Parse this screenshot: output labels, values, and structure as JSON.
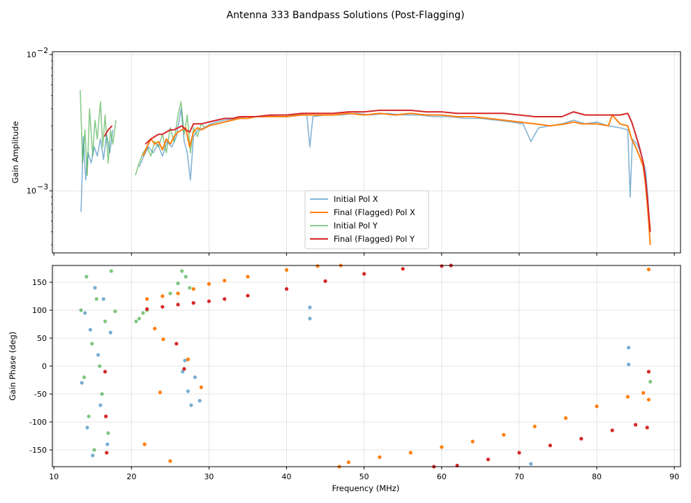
{
  "chart_data": {
    "type": "line",
    "title": "Antenna 333 Bandpass Solutions (Post-Flagging)",
    "xlabel": "Frequency (MHz)",
    "xlim": [
      9.8,
      90.8
    ],
    "x_ticks": [
      10,
      20,
      30,
      40,
      50,
      60,
      70,
      80,
      90
    ],
    "colors": {
      "initial_x": "#1f77b4",
      "final_x": "#ff7f0e",
      "initial_y": "#2ca02c",
      "final_y": "#d62728"
    },
    "legend": {
      "location": "lower-center",
      "entries": [
        "Initial Pol X",
        "Final (Flagged) Pol X",
        "Initial Pol Y",
        "Final (Flagged) Pol Y"
      ]
    },
    "amplitude_panel": {
      "ylabel": "Gain Amplitude",
      "yscale": "log",
      "ylim": [
        0.00035,
        0.0105
      ],
      "y_major_ticks": [
        0.001,
        0.01
      ],
      "y_major_labels": [
        "10",
        "10"
      ],
      "y_major_exponents": [
        "−3",
        "−2"
      ],
      "series": [
        {
          "name": "Initial Pol X",
          "x": [
            13.5,
            13.8,
            14.1,
            14.4,
            14.8,
            15.2,
            15.6,
            16.0,
            16.4,
            16.8,
            17.2,
            17.6,
            21.0,
            21.6,
            22.2,
            22.8,
            23.4,
            24.0,
            24.6,
            25.2,
            25.8,
            26.4,
            26.8,
            27.2,
            27.6,
            28.0,
            28.6,
            29.4,
            30.2,
            31.0,
            32.0,
            33.5,
            35.0,
            37.0,
            39.0,
            41.0,
            42.6,
            43.0,
            43.4,
            45.0,
            47.0,
            49.0,
            51.0,
            53.0,
            55.0,
            57.0,
            59.0,
            61.0,
            63.0,
            65.0,
            67.0,
            69.0,
            70.5,
            71.5,
            72.5,
            74.0,
            75.5,
            77.0,
            78.5,
            80.0,
            81.5,
            83.0,
            84.0,
            84.3,
            84.6,
            85.2,
            85.8,
            86.3,
            86.6,
            86.8
          ],
          "y": [
            0.0007,
            0.0025,
            0.0012,
            0.0019,
            0.0016,
            0.0021,
            0.0018,
            0.0024,
            0.0017,
            0.0026,
            0.0019,
            0.0028,
            0.0015,
            0.0018,
            0.0021,
            0.0019,
            0.0022,
            0.0018,
            0.0023,
            0.0021,
            0.0025,
            0.004,
            0.0023,
            0.0019,
            0.0012,
            0.0025,
            0.0028,
            0.0029,
            0.0031,
            0.0032,
            0.0033,
            0.0034,
            0.0035,
            0.0035,
            0.0036,
            0.0036,
            0.0037,
            0.0021,
            0.0035,
            0.0036,
            0.0036,
            0.0037,
            0.0036,
            0.0037,
            0.0036,
            0.0036,
            0.0035,
            0.0035,
            0.0034,
            0.0034,
            0.0033,
            0.0032,
            0.0031,
            0.0023,
            0.0029,
            0.003,
            0.0031,
            0.0033,
            0.0031,
            0.0032,
            0.003,
            0.0029,
            0.0028,
            0.0009,
            0.0024,
            0.0022,
            0.0018,
            0.0014,
            0.0009,
            0.0005
          ]
        },
        {
          "name": "Final (Flagged) Pol X",
          "x": [
            21.5,
            22.0,
            22.5,
            23.0,
            23.5,
            24.0,
            24.5,
            25.0,
            25.5,
            26.0,
            26.5,
            27.0,
            27.5,
            28.0,
            28.5,
            29.0,
            30.0,
            31.0,
            32.0,
            33.0,
            34.0,
            35.0,
            36.0,
            38.0,
            40.0,
            42.0,
            44.0,
            46.0,
            48.0,
            50.0,
            52.0,
            54.0,
            56.0,
            58.0,
            60.0,
            62.0,
            64.0,
            66.0,
            68.0,
            70.0,
            72.0,
            74.0,
            76.0,
            77.0,
            78.0,
            80.0,
            81.5,
            82.0,
            83.0,
            84.0,
            84.5,
            85.0,
            85.5,
            86.0,
            86.3,
            86.6,
            86.9
          ],
          "y": [
            0.0018,
            0.0021,
            0.0024,
            0.0022,
            0.0023,
            0.002,
            0.0024,
            0.0022,
            0.0025,
            0.0027,
            0.0028,
            0.0029,
            0.0021,
            0.0027,
            0.0029,
            0.0028,
            0.003,
            0.0031,
            0.0032,
            0.0033,
            0.0034,
            0.0034,
            0.0035,
            0.0035,
            0.0035,
            0.0036,
            0.0036,
            0.0036,
            0.0037,
            0.0036,
            0.0037,
            0.0036,
            0.0037,
            0.0036,
            0.0036,
            0.0035,
            0.0035,
            0.0034,
            0.0033,
            0.0032,
            0.0031,
            0.003,
            0.0031,
            0.0032,
            0.0031,
            0.0031,
            0.003,
            0.0036,
            0.0031,
            0.003,
            0.0024,
            0.0021,
            0.0018,
            0.0015,
            0.0011,
            0.0007,
            0.0004
          ]
        },
        {
          "name": "Initial Pol Y",
          "x": [
            13.4,
            13.7,
            14.0,
            14.3,
            14.6,
            15.0,
            15.3,
            15.6,
            16.0,
            16.3,
            16.6,
            17.0,
            17.3,
            17.6,
            18.0,
            20.5,
            21.0,
            21.5,
            22.0,
            22.5,
            23.0,
            23.5,
            24.0,
            24.5,
            25.0,
            25.5,
            26.0,
            26.4,
            26.8,
            27.2,
            27.6,
            28.0,
            28.5,
            29.0,
            29.5
          ],
          "y": [
            0.0055,
            0.0016,
            0.0028,
            0.0013,
            0.004,
            0.0018,
            0.0033,
            0.0024,
            0.0045,
            0.0021,
            0.0036,
            0.0016,
            0.0028,
            0.0022,
            0.0033,
            0.0013,
            0.0016,
            0.0019,
            0.0021,
            0.0018,
            0.0023,
            0.0021,
            0.0026,
            0.0019,
            0.0029,
            0.0023,
            0.0036,
            0.0045,
            0.0026,
            0.0036,
            0.0019,
            0.0029,
            0.0025,
            0.0031,
            0.0029
          ]
        },
        {
          "name": "Final (Flagged) Pol Y",
          "x": [
            16.5,
            17.0,
            17.5,
            21.8,
            22.5,
            23.0,
            23.5,
            24.0,
            24.5,
            25.0,
            25.5,
            26.0,
            26.5,
            27.0,
            27.5,
            28.0,
            29.0,
            30.0,
            31.0,
            32.0,
            33.0,
            34.0,
            36.0,
            38.0,
            40.0,
            42.0,
            44.0,
            46.0,
            48.0,
            50.0,
            52.0,
            54.0,
            56.0,
            58.0,
            60.0,
            62.0,
            64.0,
            66.0,
            68.0,
            70.0,
            72.0,
            74.0,
            75.5,
            77.0,
            78.5,
            80.0,
            81.5,
            83.0,
            84.0,
            84.5,
            85.0,
            85.5,
            86.0,
            86.3,
            86.6,
            86.9
          ],
          "y": [
            0.0025,
            0.0028,
            0.003,
            0.0022,
            0.0024,
            0.0025,
            0.0026,
            0.0026,
            0.0027,
            0.0028,
            0.0028,
            0.0029,
            0.003,
            0.0028,
            0.0027,
            0.0031,
            0.0031,
            0.0032,
            0.0033,
            0.0034,
            0.0034,
            0.0035,
            0.0035,
            0.0036,
            0.0036,
            0.0037,
            0.0037,
            0.0037,
            0.0038,
            0.0038,
            0.0039,
            0.0039,
            0.0039,
            0.0038,
            0.0038,
            0.0037,
            0.0037,
            0.0037,
            0.0037,
            0.0036,
            0.0035,
            0.0035,
            0.0035,
            0.0038,
            0.0036,
            0.0036,
            0.0036,
            0.0036,
            0.0037,
            0.0032,
            0.0026,
            0.0021,
            0.0016,
            0.0012,
            0.0008,
            0.0005
          ]
        }
      ]
    },
    "phase_panel": {
      "ylabel": "Gain Phase (deg)",
      "ylim": [
        -180,
        180
      ],
      "y_ticks": [
        -150,
        -100,
        -50,
        0,
        50,
        100,
        150
      ],
      "series": [
        {
          "name": "Initial Pol X",
          "x": [
            13.6,
            14.0,
            14.3,
            14.7,
            15.0,
            15.3,
            15.7,
            16.0,
            16.4,
            16.9,
            17.3,
            26.6,
            26.9,
            27.3,
            27.7,
            28.2,
            28.8,
            43.0,
            43.0,
            71.5,
            84.1,
            84.1
          ],
          "y": [
            -30,
            95,
            -110,
            65,
            -160,
            140,
            20,
            -70,
            120,
            -140,
            60,
            -10,
            10,
            -45,
            -70,
            -20,
            -62,
            85,
            105,
            -175,
            33,
            3
          ]
        },
        {
          "name": "Final (Flagged) Pol X",
          "x": [
            22.0,
            24.0,
            26.0,
            28.0,
            30.0,
            32.0,
            35.0,
            40.0,
            44.0,
            47.0,
            46.8,
            48.0,
            52.0,
            56.0,
            60.0,
            64.0,
            68.0,
            72.0,
            76.0,
            80.0,
            84.0,
            86.0,
            86.7,
            23.0,
            24.1,
            23.7,
            27.3,
            29.0,
            21.7,
            25.0,
            86.7
          ],
          "y": [
            120,
            125,
            130,
            138,
            147,
            153,
            160,
            172,
            179,
            180,
            -180,
            -172,
            -163,
            -155,
            -145,
            -135,
            -123,
            -108,
            -93,
            -72,
            -55,
            -48,
            -60,
            67,
            48,
            -47,
            12,
            -38,
            -140,
            -170,
            173
          ]
        },
        {
          "name": "Initial Pol Y",
          "x": [
            13.5,
            13.9,
            14.2,
            14.5,
            14.9,
            15.2,
            15.5,
            15.9,
            16.2,
            16.6,
            17.0,
            17.4,
            17.9,
            20.6,
            21.0,
            21.5,
            22.0,
            25.0,
            26.0,
            26.5,
            27.0,
            27.5,
            86.9
          ],
          "y": [
            100,
            -20,
            160,
            -90,
            40,
            -150,
            120,
            0,
            -50,
            80,
            -120,
            170,
            98,
            80,
            85,
            95,
            100,
            130,
            148,
            170,
            160,
            140,
            -28
          ]
        },
        {
          "name": "Final (Flagged) Pol Y",
          "x": [
            16.6,
            16.7,
            16.8,
            22.0,
            24.0,
            26.0,
            28.0,
            30.0,
            32.0,
            35.0,
            40.0,
            45.0,
            50.0,
            55.0,
            60.0,
            61.2,
            59.0,
            62.0,
            66.0,
            70.0,
            74.0,
            78.0,
            82.0,
            85.0,
            86.5,
            86.7,
            25.8,
            26.8
          ],
          "y": [
            -10,
            -90,
            -155,
            102,
            106,
            110,
            113,
            116,
            120,
            126,
            138,
            152,
            165,
            174,
            179,
            180,
            -180,
            -178,
            -167,
            -155,
            -142,
            -130,
            -115,
            -105,
            -110,
            -10,
            40,
            -5
          ]
        }
      ]
    }
  }
}
